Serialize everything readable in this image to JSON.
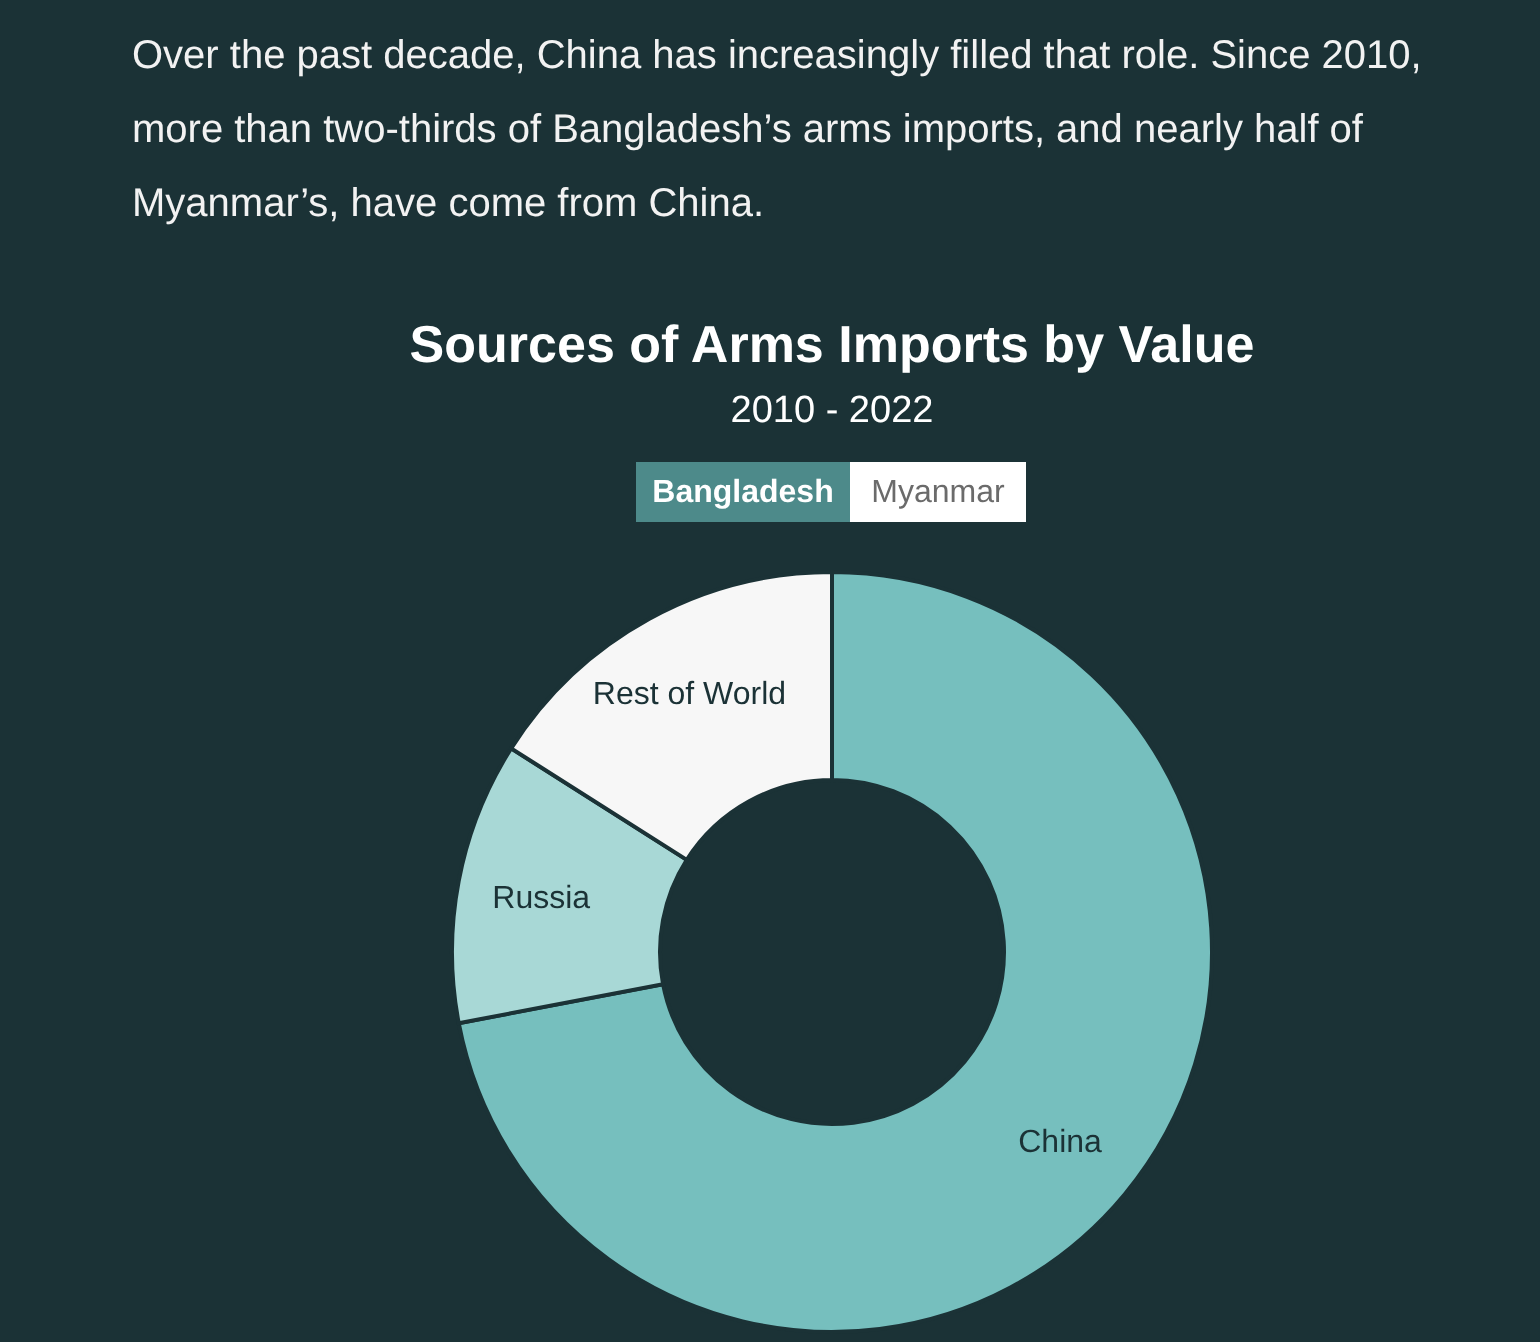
{
  "chart_data": {
    "type": "donut",
    "title": "Sources of Arms Imports by Value",
    "subtitle": "2010 - 2022",
    "categories": [
      "China",
      "Russia",
      "Rest of World"
    ],
    "values": [
      72,
      12,
      16
    ],
    "colors": [
      "#76bfbe",
      "#a8d8d6",
      "#f7f7f7"
    ],
    "annotations": [
      "Over the past decade, China has increasingly filled that role. Since 2010, more than two-thirds of Bangladesh’s arms imports, and nearly half of Myanmar’s, have come from China.",
      "Bangladesh",
      "Myanmar"
    ]
  }
}
